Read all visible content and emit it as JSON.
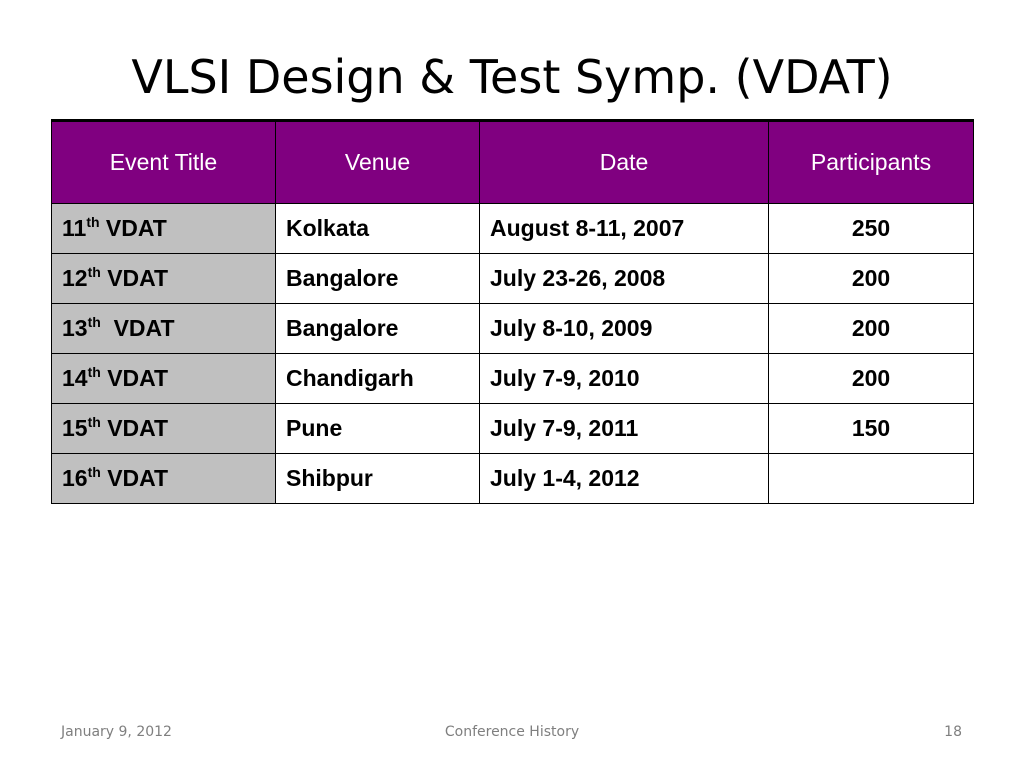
{
  "slide": {
    "title": "VLSI Design & Test Symp. (VDAT)"
  },
  "table": {
    "headers": [
      "Event Title",
      "Venue",
      "Date",
      "Participants"
    ],
    "rows": [
      {
        "ordinal": "11",
        "suffix": "th",
        "event": " VDAT",
        "venue": "Kolkata",
        "date": "August 8-11, 2007",
        "participants": "250"
      },
      {
        "ordinal": "12",
        "suffix": "th",
        "event": " VDAT",
        "venue": "Bangalore",
        "date": "July 23-26, 2008",
        "participants": "200"
      },
      {
        "ordinal": "13",
        "suffix": "th",
        "event": "  VDAT",
        "venue": "Bangalore",
        "date": "July 8-10, 2009",
        "participants": "200"
      },
      {
        "ordinal": "14",
        "suffix": "th",
        "event": " VDAT",
        "venue": "Chandigarh",
        "date": "July 7-9, 2010",
        "participants": "200"
      },
      {
        "ordinal": "15",
        "suffix": "th",
        "event": " VDAT",
        "venue": "Pune",
        "date": "July 7-9, 2011",
        "participants": "150"
      },
      {
        "ordinal": "16",
        "suffix": "th",
        "event": " VDAT",
        "venue": "Shibpur",
        "date": "July 1-4, 2012",
        "participants": ""
      }
    ]
  },
  "footer": {
    "date": "January 9, 2012",
    "center": "Conference History",
    "page": "18"
  },
  "colors": {
    "header_bg": "#800080",
    "event_col_bg": "#c0c0c0",
    "footer_text": "#7f7f7f"
  }
}
